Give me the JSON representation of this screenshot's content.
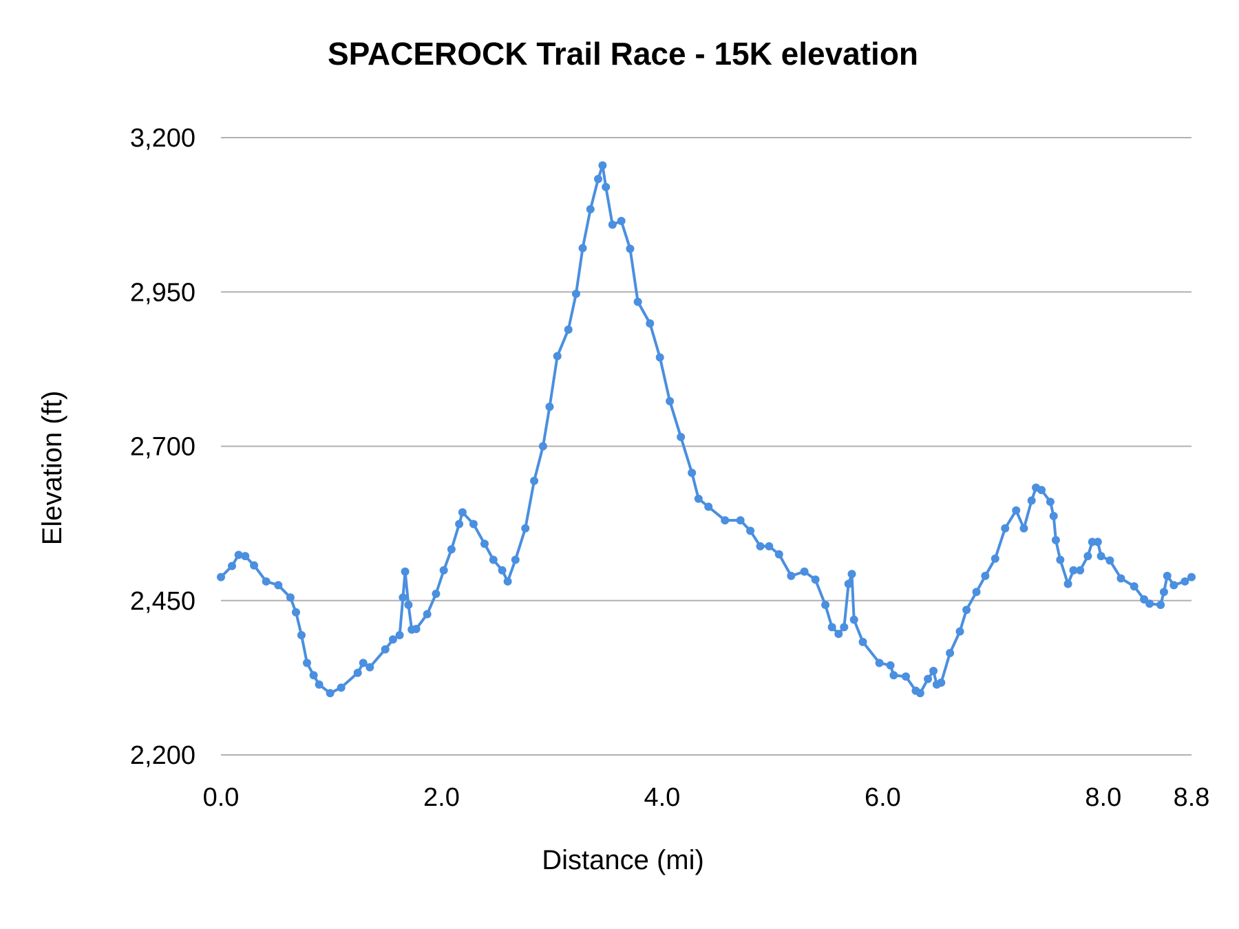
{
  "chart_data": {
    "type": "line",
    "title": "SPACEROCK Trail Race - 15K elevation",
    "xlabel": "Distance (mi)",
    "ylabel": "Elevation (ft)",
    "xlim": [
      0,
      8.8
    ],
    "ylim": [
      2200,
      3200
    ],
    "x_ticks": [
      "0.0",
      "2.0",
      "4.0",
      "6.0",
      "8.0",
      "8.8"
    ],
    "x_tick_values": [
      0,
      2,
      4,
      6,
      8,
      8.8
    ],
    "y_ticks": [
      "3,200",
      "2,950",
      "2,700",
      "2,450",
      "2,200"
    ],
    "y_tick_values": [
      3200,
      2950,
      2700,
      2450,
      2200
    ],
    "grid": "horizontal",
    "legend": "none",
    "markers": true,
    "series": [
      {
        "color": "#4a8fe0",
        "x": [
          0.0,
          0.1,
          0.16,
          0.22,
          0.3,
          0.41,
          0.52,
          0.63,
          0.68,
          0.73,
          0.78,
          0.84,
          0.89,
          0.99,
          1.09,
          1.24,
          1.29,
          1.35,
          1.49,
          1.56,
          1.62,
          1.65,
          1.67,
          1.7,
          1.73,
          1.77,
          1.87,
          1.95,
          2.02,
          2.09,
          2.16,
          2.19,
          2.29,
          2.39,
          2.47,
          2.55,
          2.6,
          2.67,
          2.76,
          2.84,
          2.92,
          2.98,
          3.05,
          3.15,
          3.22,
          3.28,
          3.35,
          3.42,
          3.46,
          3.49,
          3.55,
          3.63,
          3.71,
          3.78,
          3.89,
          3.98,
          4.07,
          4.17,
          4.27,
          4.33,
          4.42,
          4.57,
          4.71,
          4.8,
          4.89,
          4.97,
          5.06,
          5.17,
          5.29,
          5.39,
          5.48,
          5.54,
          5.6,
          5.65,
          5.69,
          5.72,
          5.74,
          5.82,
          5.97,
          6.07,
          6.1,
          6.21,
          6.3,
          6.34,
          6.41,
          6.46,
          6.49,
          6.53,
          6.61,
          6.7,
          6.76,
          6.85,
          6.93,
          7.02,
          7.11,
          7.21,
          7.28,
          7.35,
          7.39,
          7.44,
          7.52,
          7.55,
          7.57,
          7.61,
          7.68,
          7.73,
          7.79,
          7.86,
          7.9,
          7.95,
          7.98,
          8.06,
          8.16,
          8.28,
          8.37,
          8.42,
          8.52,
          8.55,
          8.58,
          8.64,
          8.74,
          8.8
        ],
        "y": [
          2488,
          2506,
          2524,
          2522,
          2507,
          2481,
          2475,
          2455,
          2431,
          2394,
          2349,
          2329,
          2314,
          2300,
          2309,
          2333,
          2349,
          2342,
          2371,
          2387,
          2394,
          2455,
          2497,
          2443,
          2403,
          2404,
          2428,
          2461,
          2499,
          2533,
          2574,
          2593,
          2574,
          2542,
          2516,
          2499,
          2481,
          2516,
          2567,
          2644,
          2700,
          2764,
          2846,
          2889,
          2947,
          3021,
          3084,
          3133,
          3155,
          3120,
          3059,
          3065,
          3020,
          2934,
          2899,
          2844,
          2773,
          2715,
          2657,
          2615,
          2602,
          2580,
          2580,
          2563,
          2538,
          2538,
          2525,
          2490,
          2497,
          2484,
          2443,
          2407,
          2396,
          2407,
          2477,
          2493,
          2419,
          2383,
          2349,
          2345,
          2329,
          2327,
          2304,
          2300,
          2323,
          2336,
          2314,
          2317,
          2365,
          2400,
          2435,
          2464,
          2490,
          2518,
          2567,
          2596,
          2567,
          2612,
          2633,
          2629,
          2610,
          2587,
          2548,
          2516,
          2477,
          2499,
          2499,
          2522,
          2545,
          2545,
          2522,
          2515,
          2486,
          2473,
          2452,
          2445,
          2443,
          2464,
          2490,
          2475,
          2481,
          2488
        ]
      }
    ]
  }
}
